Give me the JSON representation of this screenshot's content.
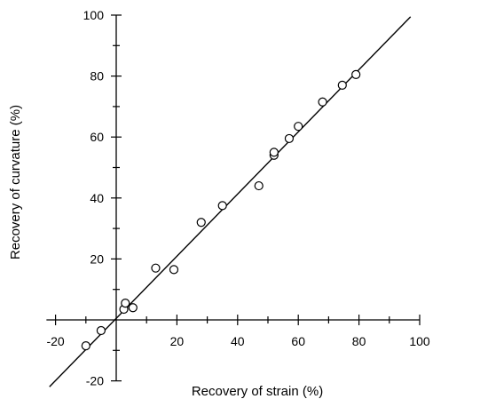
{
  "chart_data": {
    "type": "scatter",
    "xlabel": "Recovery of strain (%)",
    "ylabel": "Recovery of curvature (%)",
    "xlim": [
      -25,
      105
    ],
    "ylim": [
      -25,
      103
    ],
    "x_ticks": [
      -20,
      20,
      40,
      60,
      80,
      100
    ],
    "y_ticks": [
      -20,
      20,
      40,
      60,
      80,
      100
    ],
    "grid": false,
    "axes_cross_at_origin": true,
    "series": [
      {
        "marker": "open-circle",
        "points": [
          {
            "x": -10,
            "y": -8.5
          },
          {
            "x": -5,
            "y": -3.5
          },
          {
            "x": 2.5,
            "y": 3.5
          },
          {
            "x": 3,
            "y": 5.5
          },
          {
            "x": 5.5,
            "y": 4
          },
          {
            "x": 13,
            "y": 17
          },
          {
            "x": 19,
            "y": 16.5
          },
          {
            "x": 28,
            "y": 32
          },
          {
            "x": 35,
            "y": 37.5
          },
          {
            "x": 47,
            "y": 44
          },
          {
            "x": 52,
            "y": 54
          },
          {
            "x": 52,
            "y": 55
          },
          {
            "x": 57,
            "y": 59.5
          },
          {
            "x": 60,
            "y": 63.5
          },
          {
            "x": 68,
            "y": 71.5
          },
          {
            "x": 74.5,
            "y": 77
          },
          {
            "x": 79,
            "y": 80.5
          }
        ]
      }
    ],
    "fit_line": {
      "slope": 1.02,
      "intercept": 0.5,
      "x_start": -22,
      "x_end": 97
    }
  }
}
